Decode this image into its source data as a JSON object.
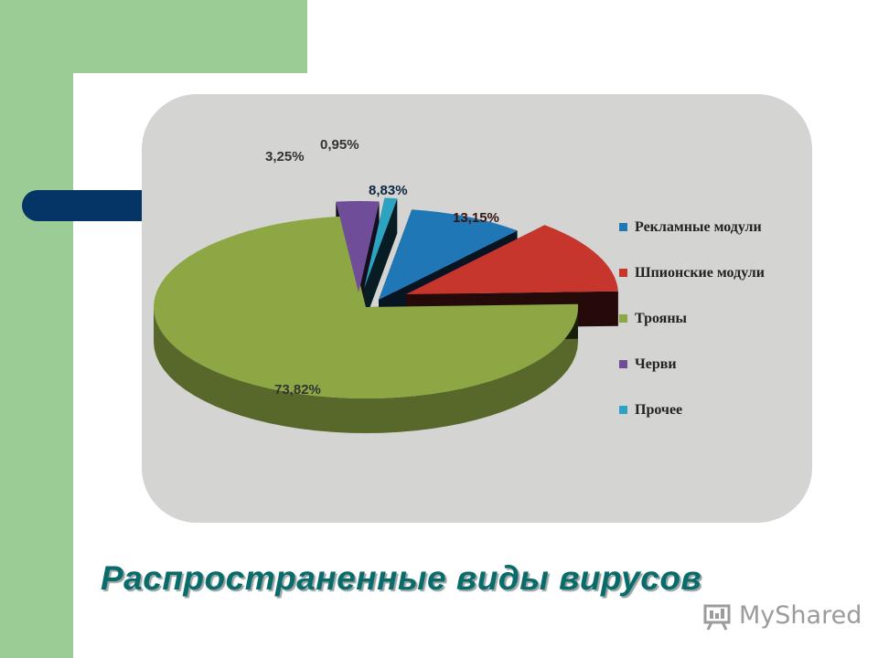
{
  "slide": {
    "title": "Распространенные виды вирусов"
  },
  "watermark": {
    "text": "MyShared",
    "icon": "presentation-board-icon"
  },
  "chart_data": {
    "type": "pie",
    "style": "3d exploded pie",
    "categories": [
      "Рекламные модули",
      "Шпионские модули",
      "Трояны",
      "Черви",
      "Прочее"
    ],
    "values": [
      8.83,
      13.15,
      73.82,
      3.25,
      0.95
    ],
    "data_labels": [
      "8,83%",
      "13,15%",
      "73,82%",
      "3,25%",
      "0,95%"
    ],
    "colors": [
      "#1f77b5",
      "#c7362c",
      "#8da744",
      "#6f4d99",
      "#2ba3c1"
    ],
    "legend": {
      "position": "right",
      "entries": [
        "Рекламные модули",
        "Шпионские модули",
        "Трояны",
        "Черви",
        "Прочее"
      ]
    },
    "title": "",
    "panel_background": "#d4d4d2"
  }
}
